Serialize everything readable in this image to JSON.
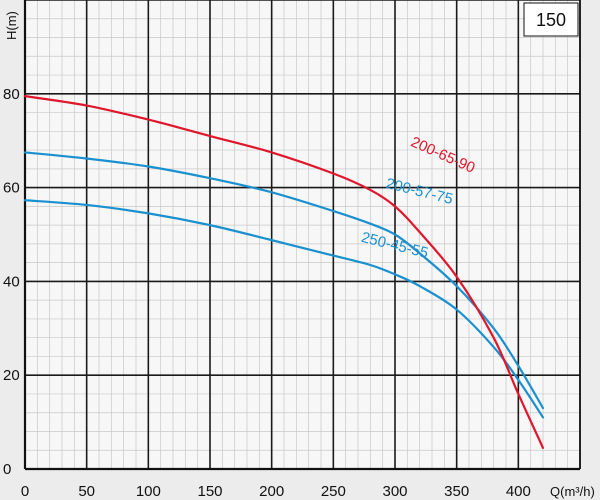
{
  "chart_data": {
    "type": "line",
    "model_label": "150",
    "xlabel": "Q(m³/h)",
    "ylabel": "H(m)",
    "xlim": [
      0,
      450
    ],
    "ylim": [
      0,
      100
    ],
    "xticks": [
      0,
      50,
      100,
      150,
      200,
      250,
      300,
      350,
      400
    ],
    "yticks": [
      0,
      20,
      40,
      60,
      80
    ],
    "x_tick_labels": [
      "0",
      "50",
      "100",
      "150",
      "200",
      "250",
      "300",
      "350",
      "400"
    ],
    "y_tick_labels": [
      "0",
      "20",
      "40",
      "60",
      "80"
    ],
    "grid": true,
    "series": [
      {
        "name": "200-65-90",
        "color": "#e0162b",
        "x": [
          0,
          50,
          100,
          150,
          200,
          250,
          280,
          300,
          320,
          350,
          380,
          400,
          420
        ],
        "y": [
          79.5,
          77.5,
          74.5,
          71,
          67.5,
          63,
          59.5,
          56,
          50.5,
          41,
          28,
          16,
          4.5
        ]
      },
      {
        "name": "200-57-75",
        "color": "#1a90cf",
        "x": [
          0,
          50,
          100,
          150,
          200,
          250,
          280,
          300,
          320,
          350,
          380,
          400,
          420
        ],
        "y": [
          67.5,
          66.2,
          64.5,
          62,
          59,
          55,
          52.3,
          50,
          46,
          39,
          30,
          22,
          13
        ]
      },
      {
        "name": "250-45-55",
        "color": "#1a90cf",
        "x": [
          0,
          50,
          100,
          150,
          200,
          250,
          280,
          300,
          320,
          350,
          380,
          400,
          420
        ],
        "y": [
          57.3,
          56.3,
          54.5,
          52,
          48.8,
          45.5,
          43.5,
          41.5,
          39,
          34,
          26,
          19,
          11
        ]
      }
    ]
  }
}
